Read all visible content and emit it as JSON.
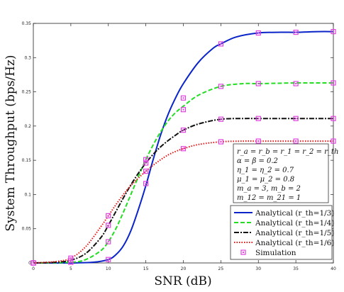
{
  "chart_data": {
    "type": "line",
    "xlabel": "SNR (dB)",
    "ylabel": "System Throughput (bps/Hz)",
    "xlim": [
      0,
      40
    ],
    "ylim": [
      0,
      0.35
    ],
    "xticks": [
      "0",
      "5",
      "10",
      "15",
      "20",
      "25",
      "30",
      "35",
      "40"
    ],
    "yticks": [
      "0",
      "0.05",
      "0.1",
      "0.15",
      "0.2",
      "0.25",
      "0.3",
      "0.35"
    ],
    "grid": false,
    "legend_position": "bottom-right",
    "annotation_lines": [
      "r_a = r_b = r_1 = r_2 = r_th",
      "α = β = 0.2",
      "η_1 = η_2 = 0.7",
      "μ_1 = μ_2 = 0.8",
      "m_a = 3, m_b = 2",
      "m_12 = m_21 = 1"
    ],
    "series": [
      {
        "name": "Analytical (r_th=1/3)",
        "color": "#0a24c8",
        "style": "solid",
        "x": [
          0,
          5,
          8,
          10,
          11,
          12,
          13,
          14,
          15,
          16,
          17,
          18,
          19,
          20,
          22,
          24,
          25,
          27,
          30,
          33,
          35,
          38,
          40
        ],
        "y": [
          0,
          0,
          0.001,
          0.005,
          0.012,
          0.025,
          0.047,
          0.078,
          0.113,
          0.152,
          0.188,
          0.218,
          0.242,
          0.262,
          0.293,
          0.314,
          0.32,
          0.33,
          0.336,
          0.337,
          0.337,
          0.338,
          0.338
        ]
      },
      {
        "name": "Analytical (r_th=1/4)",
        "color": "#22dd22",
        "style": "dashed",
        "x": [
          0,
          5,
          7,
          9,
          10,
          11,
          12,
          13,
          14,
          15,
          16,
          17,
          18,
          19,
          20,
          22,
          25,
          28,
          30,
          35,
          40
        ],
        "y": [
          0,
          0.001,
          0.005,
          0.018,
          0.031,
          0.05,
          0.074,
          0.1,
          0.126,
          0.151,
          0.173,
          0.192,
          0.208,
          0.22,
          0.229,
          0.245,
          0.258,
          0.262,
          0.262,
          0.263,
          0.263
        ]
      },
      {
        "name": "Analytical (r_th=1/5)",
        "color": "#111111",
        "style": "dashdot",
        "x": [
          0,
          3,
          5,
          7,
          9,
          10,
          11,
          12,
          13,
          14,
          15,
          16,
          17,
          18,
          19,
          20,
          22,
          25,
          28,
          30,
          35,
          40
        ],
        "y": [
          0,
          0.001,
          0.004,
          0.014,
          0.037,
          0.055,
          0.075,
          0.095,
          0.114,
          0.131,
          0.146,
          0.159,
          0.17,
          0.179,
          0.187,
          0.194,
          0.203,
          0.21,
          0.211,
          0.211,
          0.211,
          0.211
        ]
      },
      {
        "name": "Analytical (r_th=1/6)",
        "color": "#ee1111",
        "style": "dotted",
        "x": [
          0,
          3,
          5,
          7,
          9,
          10,
          11,
          12,
          13,
          14,
          15,
          16,
          17,
          18,
          19,
          20,
          22,
          25,
          28,
          30,
          35,
          40
        ],
        "y": [
          0,
          0.002,
          0.007,
          0.024,
          0.053,
          0.069,
          0.085,
          0.1,
          0.113,
          0.124,
          0.134,
          0.143,
          0.151,
          0.158,
          0.163,
          0.167,
          0.173,
          0.177,
          0.178,
          0.178,
          0.178,
          0.178
        ]
      }
    ],
    "simulation": {
      "name": "Simulation",
      "color": "#e040e0",
      "x": [
        0,
        5,
        10,
        15,
        20,
        25,
        30,
        35,
        40
      ],
      "points": [
        [
          0,
          5,
          10,
          15,
          20,
          25,
          30,
          35,
          40
        ],
        [
          0,
          0.001,
          0.005,
          0.116,
          0.241,
          0.32,
          0.336,
          0.337,
          0.338
        ],
        [
          0,
          0.001,
          0.031,
          0.151,
          0.224,
          0.258,
          0.262,
          0.262,
          0.263
        ],
        [
          0,
          0.004,
          0.055,
          0.146,
          0.194,
          0.21,
          0.211,
          0.211,
          0.211
        ],
        [
          0,
          0.007,
          0.069,
          0.134,
          0.167,
          0.177,
          0.178,
          0.178,
          0.178
        ]
      ]
    }
  }
}
